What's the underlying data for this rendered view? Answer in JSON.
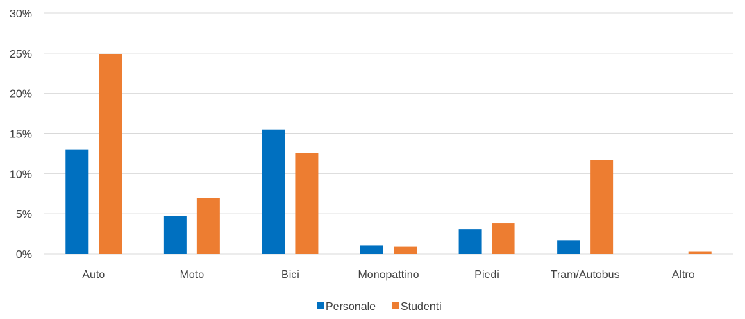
{
  "chart_data": {
    "type": "bar",
    "categories": [
      "Auto",
      "Moto",
      "Bici",
      "Monopattino",
      "Piedi",
      "Tram/Autobus",
      "Altro"
    ],
    "series": [
      {
        "name": "Personale",
        "values": [
          13.0,
          4.7,
          15.5,
          1.0,
          3.1,
          1.7,
          0.0
        ],
        "color": "#0070C0"
      },
      {
        "name": "Studenti",
        "values": [
          24.9,
          7.0,
          12.6,
          0.9,
          3.8,
          11.7,
          0.3
        ],
        "color": "#ED7D31"
      }
    ],
    "yticks": [
      "0%",
      "5%",
      "10%",
      "15%",
      "20%",
      "25%",
      "30%"
    ],
    "ylim": [
      0,
      30
    ],
    "grid": true,
    "gridColor": "#d9d9d9",
    "legend_position": "bottom"
  }
}
